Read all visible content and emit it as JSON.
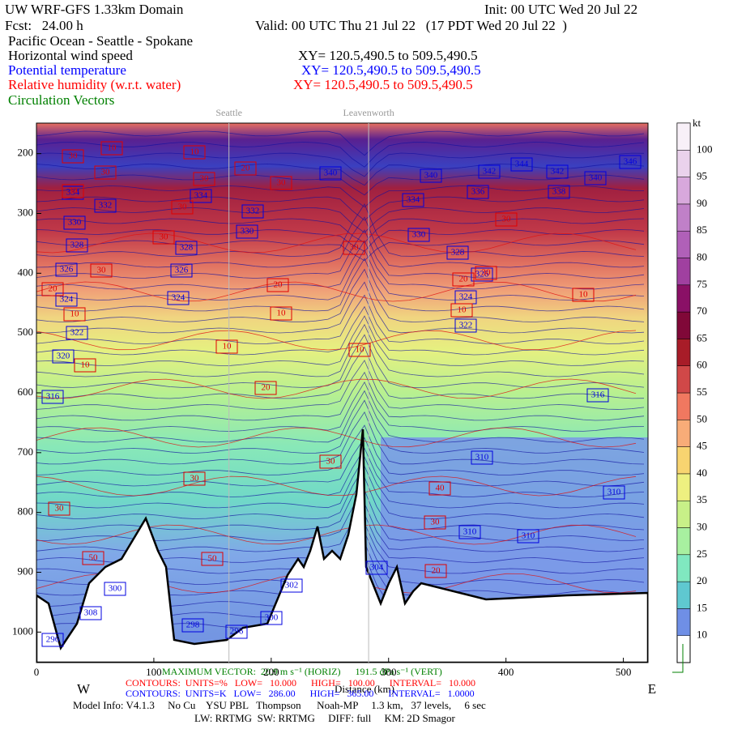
{
  "chart_data": {
    "type": "contour",
    "title": "UW WRF-GFS 1.33km Domain",
    "init": "Init: 00 UTC Wed 20 Jul 22",
    "forecast": "Fcst:   24.00 h",
    "valid": "Valid: 00 UTC Thu 21 Jul 22   (17 PDT Wed 20 Jul 22  )",
    "subtitle": "Pacific Ocean - Seattle - Spokane",
    "fields": [
      {
        "name": "Horizontal wind speed",
        "color": "#000000",
        "section": "XY= 120.5,490.5 to 509.5,490.5"
      },
      {
        "name": "Potential temperature",
        "color": "#0000ff",
        "section": "XY= 120.5,490.5 to 509.5,490.5"
      },
      {
        "name": "Relative humidity (w.r.t. water)",
        "color": "#ff0000",
        "section": "XY= 120.5,490.5 to 509.5,490.5"
      },
      {
        "name": "Circulation Vectors",
        "color": "#008000"
      }
    ],
    "x_label": "Distance (km)",
    "xlim": [
      0,
      521
    ],
    "xticks": [
      0,
      100,
      200,
      300,
      400,
      500
    ],
    "ylim": [
      1051,
      149
    ],
    "yticks": [
      200,
      300,
      400,
      500,
      600,
      700,
      800,
      900,
      1000
    ],
    "x_ends": [
      "W",
      "E"
    ],
    "landmarks": [
      {
        "name": "Seattle",
        "x": 164
      },
      {
        "name": "Leavenworth",
        "x": 283
      }
    ],
    "colorbar": {
      "unit": "kt",
      "clim": [
        5,
        105
      ],
      "levels": [
        10,
        15,
        20,
        25,
        30,
        35,
        40,
        45,
        50,
        55,
        60,
        65,
        70,
        75,
        80,
        85,
        90,
        95,
        100
      ],
      "colors": [
        "#6f8fe6",
        "#5fc8d0",
        "#80e8c0",
        "#a8f0a0",
        "#c8f088",
        "#eef080",
        "#f8d470",
        "#f8ac78",
        "#f07860",
        "#d04848",
        "#a81c28",
        "#800838",
        "#8a1066",
        "#a040a0",
        "#b060b8",
        "#c080c8",
        "#d8a8dc",
        "#ead2ec",
        "#f8f0f8"
      ]
    },
    "theta_labels": [
      332,
      330,
      328,
      326,
      324,
      322,
      320,
      316,
      334,
      332,
      330,
      328,
      326,
      324,
      334,
      340,
      340,
      342,
      344,
      342,
      340,
      346,
      338,
      336,
      334,
      330,
      328,
      326,
      324,
      322,
      316,
      310,
      310,
      310,
      310,
      304,
      302,
      300,
      298,
      296,
      296,
      300,
      308
    ],
    "rh_labels": [
      30,
      10,
      10,
      30,
      30,
      20,
      30,
      30,
      30,
      30,
      30,
      20,
      10,
      20,
      10,
      10,
      10,
      20,
      30,
      30,
      50,
      50,
      40,
      30,
      20,
      30,
      10,
      30,
      20,
      10,
      10,
      30,
      30
    ],
    "footer": {
      "vector": "MAXIMUM VECTOR:  20.9 m s⁻¹ (HORIZ)      191.5 dPa s⁻¹ (VERT)",
      "rh_contours": "CONTOURS:  UNITS=%   LOW=   10.000      HIGH=   100.00      INTERVAL=   10.000",
      "theta_contours": "CONTOURS:  UNITS=K   LOW=   286.00      HIGH=   365.00      INTERVAL=   1.0000",
      "model_info": "Model Info: V4.1.3     No Cu    YSU PBL   Thompson      Noah-MP     1.3 km,   37 levels,     6 sec",
      "physics": "LW: RRTMG  SW: RRTMG     DIFF: full     KM: 2D Smagor"
    }
  }
}
